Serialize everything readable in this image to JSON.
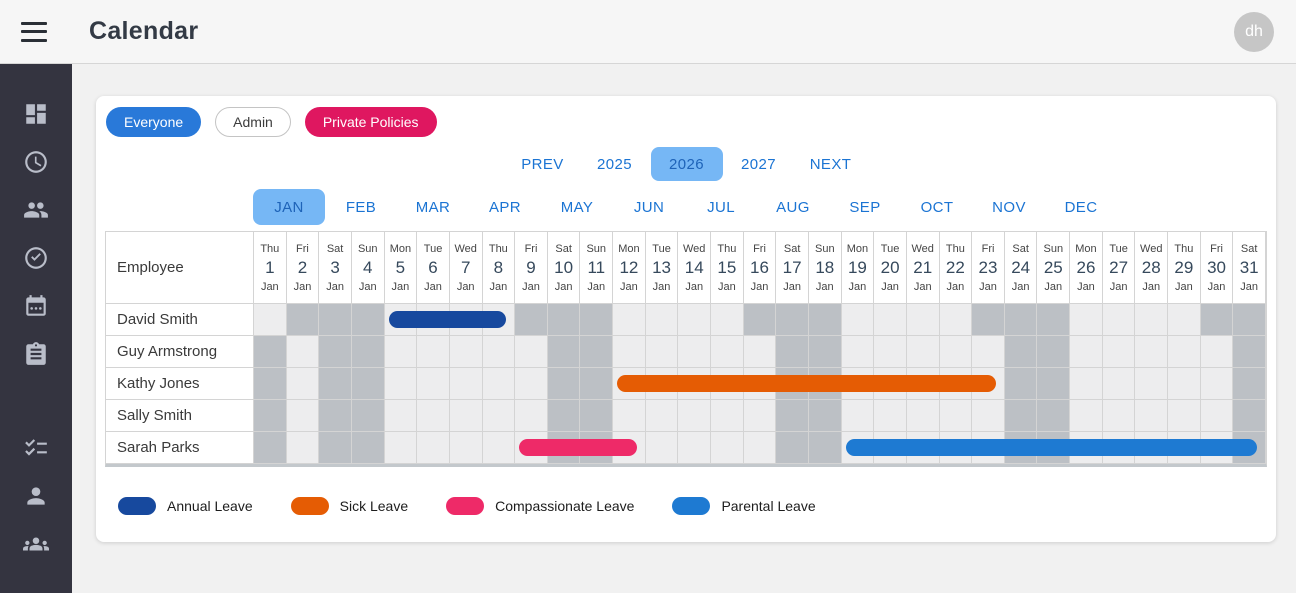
{
  "app": {
    "title": "Calendar",
    "avatar_initials": "dh"
  },
  "colors": {
    "annual": "#17499e",
    "sick": "#e55c04",
    "compassionate": "#ee2a68",
    "parental": "#1e7ad2",
    "chip_blue": "#2979d9",
    "chip_pink": "#df1760",
    "link_blue": "#1b74d3",
    "selected_bg": "#76b7f5",
    "selected_text": "#1e63b8",
    "cell_work": "#ededee",
    "cell_off": "#bcc0c5"
  },
  "sidebar": {
    "top_icons": [
      "dashboard-icon",
      "clock-icon",
      "people-icon",
      "check-circle-icon",
      "calendar-icon",
      "clipboard-icon"
    ],
    "bottom_icons": [
      "checklist-icon",
      "person-icon",
      "groups-icon"
    ]
  },
  "filters": [
    {
      "label": "Everyone",
      "variant": "blue"
    },
    {
      "label": "Admin",
      "variant": "outline"
    },
    {
      "label": "Private Policies",
      "variant": "pink"
    }
  ],
  "year_nav": {
    "prev_label": "PREV",
    "next_label": "NEXT",
    "years": [
      "2025",
      "2026",
      "2027"
    ],
    "selected_year": "2026"
  },
  "month_tabs": {
    "months": [
      "JAN",
      "FEB",
      "MAR",
      "APR",
      "MAY",
      "JUN",
      "JUL",
      "AUG",
      "SEP",
      "OCT",
      "NOV",
      "DEC"
    ],
    "selected": "JAN"
  },
  "calendar": {
    "employee_header": "Employee",
    "month_short": "Jan",
    "days": [
      {
        "num": 1,
        "weekday": "Thu"
      },
      {
        "num": 2,
        "weekday": "Fri"
      },
      {
        "num": 3,
        "weekday": "Sat"
      },
      {
        "num": 4,
        "weekday": "Sun"
      },
      {
        "num": 5,
        "weekday": "Mon"
      },
      {
        "num": 6,
        "weekday": "Tue"
      },
      {
        "num": 7,
        "weekday": "Wed"
      },
      {
        "num": 8,
        "weekday": "Thu"
      },
      {
        "num": 9,
        "weekday": "Fri"
      },
      {
        "num": 10,
        "weekday": "Sat"
      },
      {
        "num": 11,
        "weekday": "Sun"
      },
      {
        "num": 12,
        "weekday": "Mon"
      },
      {
        "num": 13,
        "weekday": "Tue"
      },
      {
        "num": 14,
        "weekday": "Wed"
      },
      {
        "num": 15,
        "weekday": "Thu"
      },
      {
        "num": 16,
        "weekday": "Fri"
      },
      {
        "num": 17,
        "weekday": "Sat"
      },
      {
        "num": 18,
        "weekday": "Sun"
      },
      {
        "num": 19,
        "weekday": "Mon"
      },
      {
        "num": 20,
        "weekday": "Tue"
      },
      {
        "num": 21,
        "weekday": "Wed"
      },
      {
        "num": 22,
        "weekday": "Thu"
      },
      {
        "num": 23,
        "weekday": "Fri"
      },
      {
        "num": 24,
        "weekday": "Sat"
      },
      {
        "num": 25,
        "weekday": "Sun"
      },
      {
        "num": 26,
        "weekday": "Mon"
      },
      {
        "num": 27,
        "weekday": "Tue"
      },
      {
        "num": 28,
        "weekday": "Wed"
      },
      {
        "num": 29,
        "weekday": "Thu"
      },
      {
        "num": 30,
        "weekday": "Fri"
      },
      {
        "num": 31,
        "weekday": "Sat"
      }
    ],
    "rows": [
      {
        "name": "David Smith",
        "off_days": [
          2,
          3,
          4,
          9,
          10,
          11,
          16,
          17,
          18,
          23,
          24,
          25,
          30,
          31
        ],
        "bars": [
          {
            "type": "annual",
            "label": "Annual Leave",
            "start": 5,
            "end": 8
          }
        ]
      },
      {
        "name": "Guy Armstrong",
        "off_days": [
          1,
          3,
          4,
          10,
          11,
          17,
          18,
          24,
          25,
          31
        ],
        "bars": []
      },
      {
        "name": "Kathy Jones",
        "off_days": [
          1,
          3,
          4,
          10,
          11,
          17,
          18,
          24,
          25,
          31
        ],
        "bars": [
          {
            "type": "sick",
            "label": "Sick Leave",
            "start": 12,
            "end": 23
          }
        ]
      },
      {
        "name": "Sally Smith",
        "off_days": [
          1,
          3,
          4,
          10,
          11,
          17,
          18,
          24,
          25,
          31
        ],
        "bars": []
      },
      {
        "name": "Sarah Parks",
        "off_days": [
          1,
          3,
          4,
          10,
          11,
          17,
          18,
          24,
          25,
          31
        ],
        "bars": [
          {
            "type": "compassionate",
            "label": "Compassionate Leave",
            "start": 9,
            "end": 12
          },
          {
            "type": "parental",
            "label": "Parental Leave",
            "start": 19,
            "end": 31
          }
        ]
      }
    ]
  },
  "legend": [
    {
      "label": "Annual Leave",
      "type": "annual"
    },
    {
      "label": "Sick Leave",
      "type": "sick"
    },
    {
      "label": "Compassionate Leave",
      "type": "compassionate"
    },
    {
      "label": "Parental Leave",
      "type": "parental"
    }
  ]
}
